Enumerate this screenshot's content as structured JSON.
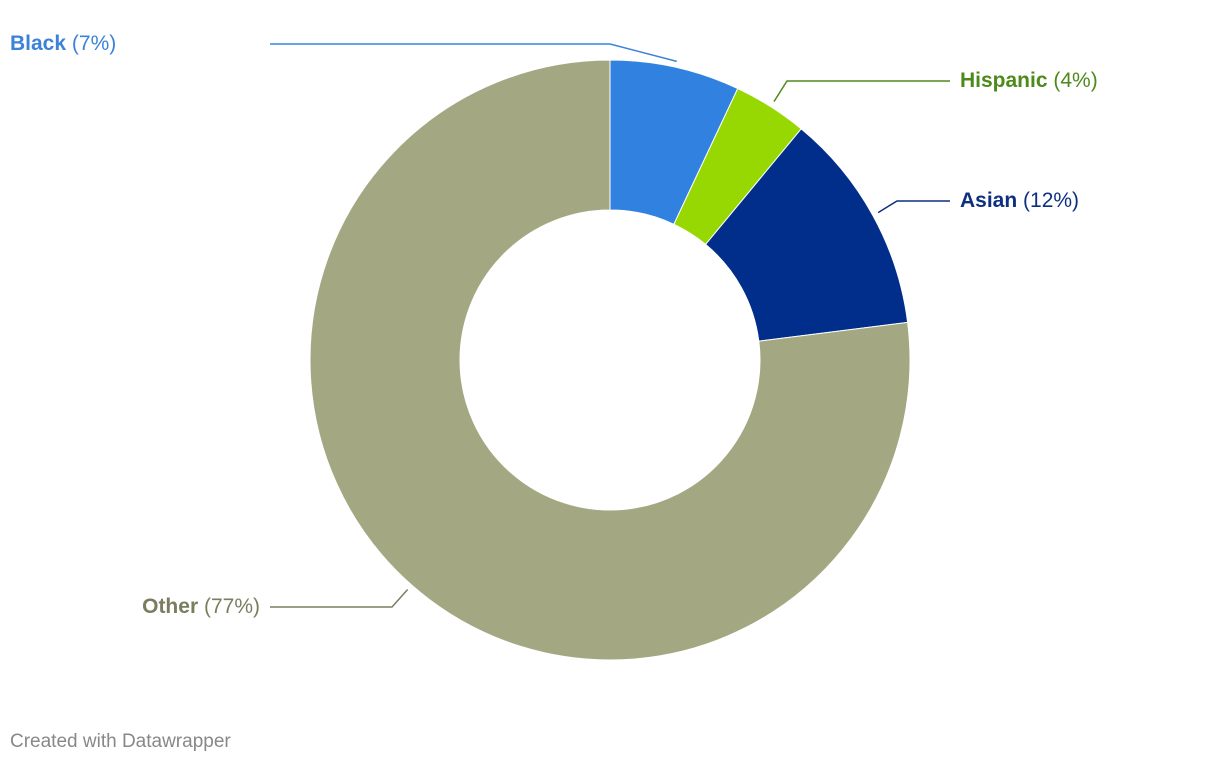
{
  "chart_data": {
    "type": "pie",
    "categories": [
      "Black",
      "Hispanic",
      "Asian",
      "Other"
    ],
    "values": [
      7,
      4,
      12,
      77
    ],
    "value_labels": [
      "(7%)",
      "(4%)",
      "(12%)",
      "(77%)"
    ],
    "colors": [
      "#3182e0",
      "#98d802",
      "#012e8a",
      "#a3a883"
    ],
    "label_colors": [
      "#3a83d9",
      "#4d8a1a",
      "#0e2f80",
      "#7b7d5e"
    ],
    "credit": "Created with Datawrapper"
  }
}
